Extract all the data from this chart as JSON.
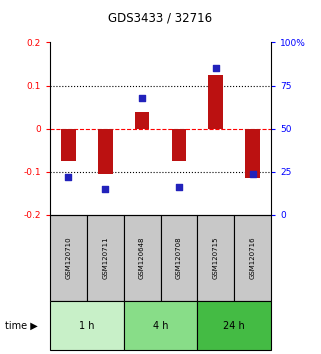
{
  "title": "GDS3433 / 32716",
  "samples": [
    "GSM120710",
    "GSM120711",
    "GSM120648",
    "GSM120708",
    "GSM120715",
    "GSM120716"
  ],
  "log10_ratio": [
    -0.075,
    -0.105,
    0.038,
    -0.075,
    0.125,
    -0.115
  ],
  "percentile_rank": [
    22,
    15,
    68,
    16,
    85,
    24
  ],
  "time_groups": [
    {
      "label": "1 h",
      "start": 0,
      "end": 2,
      "color": "#c8f0c8"
    },
    {
      "label": "4 h",
      "start": 2,
      "end": 4,
      "color": "#88dd88"
    },
    {
      "label": "24 h",
      "start": 4,
      "end": 6,
      "color": "#44bb44"
    }
  ],
  "bar_color": "#bb1111",
  "dot_color": "#2222bb",
  "ylim": [
    -0.2,
    0.2
  ],
  "y2lim": [
    0,
    100
  ],
  "yticks": [
    -0.2,
    -0.1,
    0,
    0.1,
    0.2
  ],
  "y2ticks": [
    0,
    25,
    50,
    75,
    100
  ],
  "hlines": [
    -0.1,
    0.0,
    0.1
  ],
  "hline_styles": [
    "dotted",
    "dashed",
    "dotted"
  ],
  "hline_colors": [
    "black",
    "red",
    "black"
  ]
}
